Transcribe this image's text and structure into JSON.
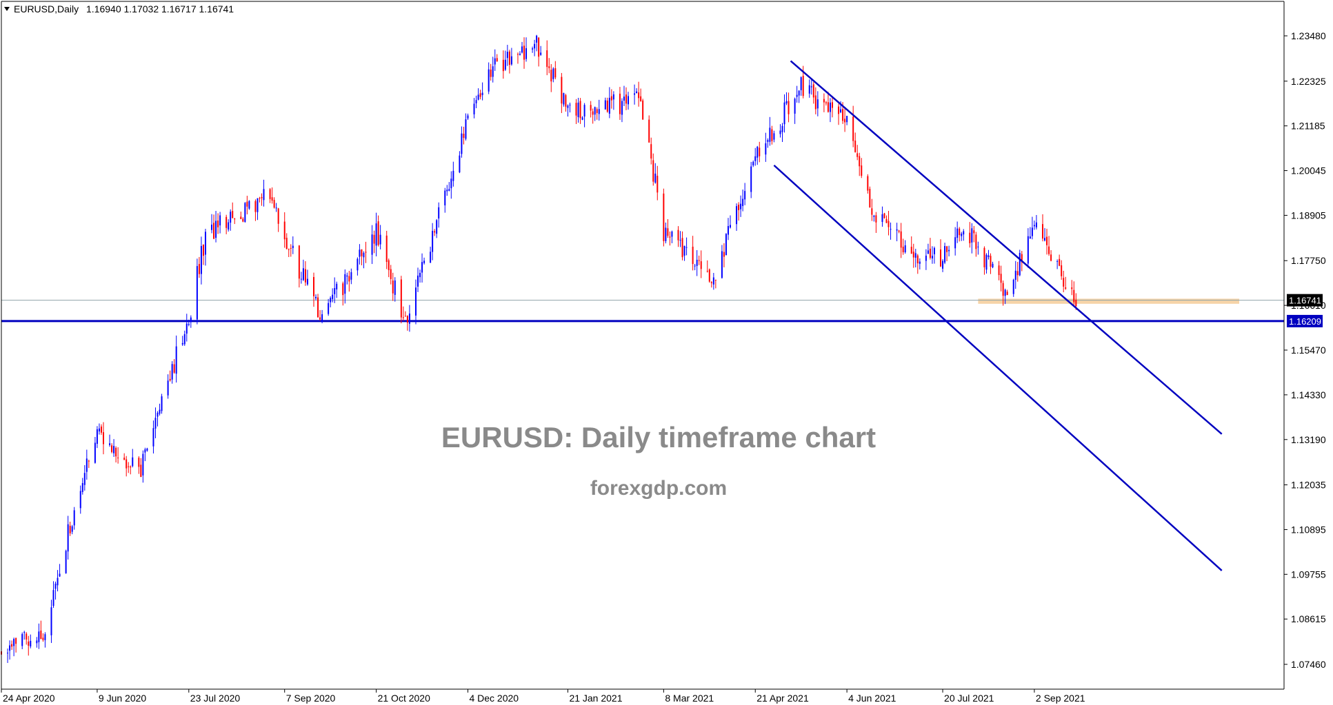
{
  "header": {
    "symbol_label": "EURUSD,Daily",
    "ohlc": "1.16940 1.17032 1.16717 1.16741"
  },
  "watermark": {
    "title": "EURUSD: Daily timeframe chart",
    "site": "forexgdp.com"
  },
  "colors": {
    "bull": "#0000ff",
    "bear": "#ff0000",
    "channel": "#0000c0",
    "support_line": "#0000c0",
    "support_zone": "#f5cf9f",
    "price_line": "#8fa3a8",
    "current_tag_bg": "#000000",
    "support_tag_bg": "#0000c0"
  },
  "chart_data": {
    "type": "candlestick",
    "symbol": "EURUSD",
    "timeframe": "Daily",
    "y_axis_ticks": [
      "1.23480",
      "1.22325",
      "1.21185",
      "1.20045",
      "1.18905",
      "1.17750",
      "1.16610",
      "1.15470",
      "1.14330",
      "1.13190",
      "1.12035",
      "1.10895",
      "1.09755",
      "1.08615",
      "1.07460"
    ],
    "x_axis_ticks": [
      "24 Apr 2020",
      "9 Jun 2020",
      "23 Jul 2020",
      "7 Sep 2020",
      "21 Oct 2020",
      "4 Dec 2020",
      "21 Jan 2021",
      "8 Mar 2021",
      "21 Apr 2021",
      "4 Jun 2021",
      "20 Jul 2021",
      "2 Sep 2021"
    ],
    "last_price": {
      "label": "1.16741",
      "value": 1.16741
    },
    "support": {
      "label": "1.16209",
      "value": 1.16209
    },
    "support_zone": {
      "low": 1.1665,
      "high": 1.1678,
      "from": "6 Aug 2021"
    },
    "channel": {
      "upper": [
        {
          "date": "Apr 2021",
          "price": 1.2284
        },
        {
          "date": "Dec 2021",
          "price": 1.1333
        }
      ],
      "lower": [
        {
          "date": "Apr 2021",
          "price": 1.2018
        },
        {
          "date": "Dec 2021",
          "price": 1.0985
        }
      ]
    },
    "close_path": [
      {
        "date": "24 Apr 2020",
        "close": 1.078
      },
      {
        "date": "14 May 2020",
        "close": 1.082
      },
      {
        "date": "5 Jun 2020",
        "close": 1.129
      },
      {
        "date": "9 Jun 2020",
        "close": 1.135
      },
      {
        "date": "29 Jun 2020",
        "close": 1.123
      },
      {
        "date": "23 Jul 2020",
        "close": 1.163
      },
      {
        "date": "31 Jul 2020",
        "close": 1.184
      },
      {
        "date": "1 Sep 2020",
        "close": 1.195
      },
      {
        "date": "7 Sep 2020",
        "close": 1.183
      },
      {
        "date": "25 Sep 2020",
        "close": 1.163
      },
      {
        "date": "21 Oct 2020",
        "close": 1.185
      },
      {
        "date": "4 Nov 2020",
        "close": 1.162
      },
      {
        "date": "4 Dec 2020",
        "close": 1.213
      },
      {
        "date": "17 Dec 2020",
        "close": 1.227
      },
      {
        "date": "6 Jan 2021",
        "close": 1.233
      },
      {
        "date": "21 Jan 2021",
        "close": 1.216
      },
      {
        "date": "25 Feb 2021",
        "close": 1.218
      },
      {
        "date": "8 Mar 2021",
        "close": 1.185
      },
      {
        "date": "31 Mar 2021",
        "close": 1.172
      },
      {
        "date": "21 Apr 2021",
        "close": 1.203
      },
      {
        "date": "13 May 2021",
        "close": 1.222
      },
      {
        "date": "4 Jun 2021",
        "close": 1.212
      },
      {
        "date": "17 Jun 2021",
        "close": 1.19
      },
      {
        "date": "7 Jul 2021",
        "close": 1.179
      },
      {
        "date": "20 Jul 2021",
        "close": 1.178
      },
      {
        "date": "30 Jul 2021",
        "close": 1.187
      },
      {
        "date": "20 Aug 2021",
        "close": 1.169
      },
      {
        "date": "2 Sep 2021",
        "close": 1.187
      },
      {
        "date": "22 Sep 2021",
        "close": 1.1674
      }
    ]
  }
}
